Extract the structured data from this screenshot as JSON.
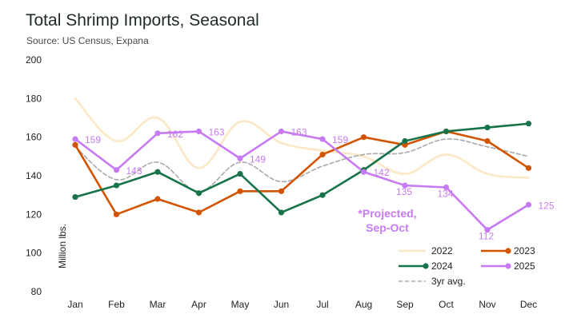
{
  "title": "Total Shrimp Imports, Seasonal",
  "subtitle": "Source: US Census, Expana",
  "chart_data": {
    "type": "line",
    "title": "Total Shrimp Imports, Seasonal",
    "xlabel": "",
    "ylabel": "Million lbs.",
    "ylim": [
      80,
      200
    ],
    "yticks": [
      80,
      100,
      120,
      140,
      160,
      180,
      200
    ],
    "categories": [
      "Jan",
      "Feb",
      "Mar",
      "Apr",
      "May",
      "Jun",
      "Jul",
      "Aug",
      "Sep",
      "Oct",
      "Nov",
      "Dec"
    ],
    "series": [
      {
        "name": "2022",
        "color": "#fbe8c4",
        "style": "solid",
        "markers": false,
        "values": [
          180,
          158,
          170,
          144,
          168,
          157,
          153,
          150,
          141,
          151,
          141,
          139
        ]
      },
      {
        "name": "2023",
        "color": "#d35400",
        "style": "solid",
        "markers": true,
        "values": [
          156,
          120,
          128,
          121,
          132,
          132,
          151,
          160,
          156,
          163,
          158,
          144
        ]
      },
      {
        "name": "2024",
        "color": "#17734a",
        "style": "solid",
        "markers": true,
        "values": [
          129,
          135,
          142,
          131,
          141,
          121,
          130,
          143,
          158,
          163,
          165,
          167
        ]
      },
      {
        "name": "2025",
        "color": "#c77bf2",
        "style": "solid",
        "markers": true,
        "values": [
          159,
          143,
          162,
          163,
          149,
          163,
          159,
          142,
          135,
          134,
          112,
          125
        ],
        "labels": [
          "159",
          "143",
          "162",
          "163",
          "149",
          "163",
          "159",
          "142",
          "135",
          "134",
          "112",
          "125"
        ]
      },
      {
        "name": "3yr avg.",
        "color": "#a9a9a9",
        "style": "dashed",
        "markers": false,
        "values": [
          155,
          138,
          147,
          132,
          147,
          137,
          145,
          151,
          152,
          159,
          155,
          150
        ]
      }
    ],
    "annotation": [
      "*Projected,",
      "Sep-Oct"
    ],
    "legend": [
      "2022",
      "2023",
      "2024",
      "2025",
      "3yr avg."
    ],
    "legend_position": "bottom-right",
    "grid": true
  }
}
